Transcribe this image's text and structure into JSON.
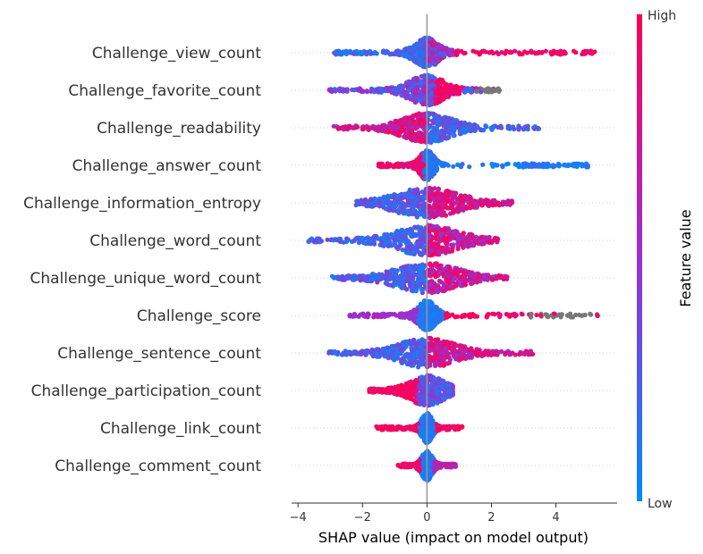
{
  "chart_data": {
    "type": "scatter",
    "subtype": "shap-beeswarm-summary",
    "xlabel": "SHAP value (impact on model output)",
    "xlim": [
      -4.2,
      5.9
    ],
    "xticks": [
      -4,
      -2,
      0,
      2,
      4
    ],
    "features": [
      {
        "name": "Challenge_view_count",
        "min": -2.9,
        "max": 5.3,
        "core_width": 0.35,
        "colour_trend": "negative=low/blue, positive=high/red, long tail to ~5.3",
        "missing_tail": null
      },
      {
        "name": "Challenge_favorite_count",
        "min": -3.1,
        "max": 2.3,
        "core_width": 0.5,
        "colour_trend": "negative=mixed purple/blue, core 0.3-1.0 red",
        "missing_tail": [
          1.5,
          2.3
        ]
      },
      {
        "name": "Challenge_readability",
        "min": -2.9,
        "max": 3.5,
        "core_width": 0.7,
        "colour_trend": "negative=red/purple, positive=blue",
        "missing_tail": null
      },
      {
        "name": "Challenge_answer_count",
        "min": -1.5,
        "max": 5.0,
        "core_width": 0.2,
        "colour_trend": "negative=red, positive cluster 2.8-5.0 blue",
        "missing_tail": null
      },
      {
        "name": "Challenge_information_entropy",
        "min": -2.2,
        "max": 2.7,
        "core_width": 0.9,
        "colour_trend": "negative=blue, positive=red/purple",
        "missing_tail": null
      },
      {
        "name": "Challenge_word_count",
        "min": -3.7,
        "max": 2.2,
        "core_width": 0.9,
        "colour_trend": "negative=blue, positive=red/purple",
        "missing_tail": null
      },
      {
        "name": "Challenge_unique_word_count",
        "min": -3.0,
        "max": 2.5,
        "core_width": 0.9,
        "colour_trend": "negative=blue, positive=red/purple",
        "missing_tail": null
      },
      {
        "name": "Challenge_score",
        "min": -2.4,
        "max": 5.4,
        "core_width": 0.25,
        "colour_trend": "negative=purple, positive=red, far tail grey",
        "missing_tail": [
          3.2,
          5.4
        ]
      },
      {
        "name": "Challenge_sentence_count",
        "min": -3.1,
        "max": 3.3,
        "core_width": 0.8,
        "colour_trend": "negative=blue, positive=red",
        "missing_tail": null
      },
      {
        "name": "Challenge_participation_count",
        "min": -1.8,
        "max": 0.8,
        "core_width": 0.5,
        "colour_trend": "negative=red, positive=blue/purple",
        "missing_tail": null
      },
      {
        "name": "Challenge_link_count",
        "min": -1.6,
        "max": 1.1,
        "core_width": 0.15,
        "colour_trend": "negative=red, core blue, positive=red",
        "missing_tail": null
      },
      {
        "name": "Challenge_comment_count",
        "min": -0.9,
        "max": 0.9,
        "core_width": 0.15,
        "colour_trend": "negative=red, core blue, positive=purple",
        "missing_tail": null
      }
    ],
    "colorbar": {
      "title": "Feature value",
      "high_label": "High",
      "low_label": "Low",
      "low_color": "#008bfb",
      "mid_color": "#9b2fd0",
      "high_color": "#ff0052",
      "missing_color": "#777777"
    },
    "zero_line": true,
    "grid": false
  }
}
